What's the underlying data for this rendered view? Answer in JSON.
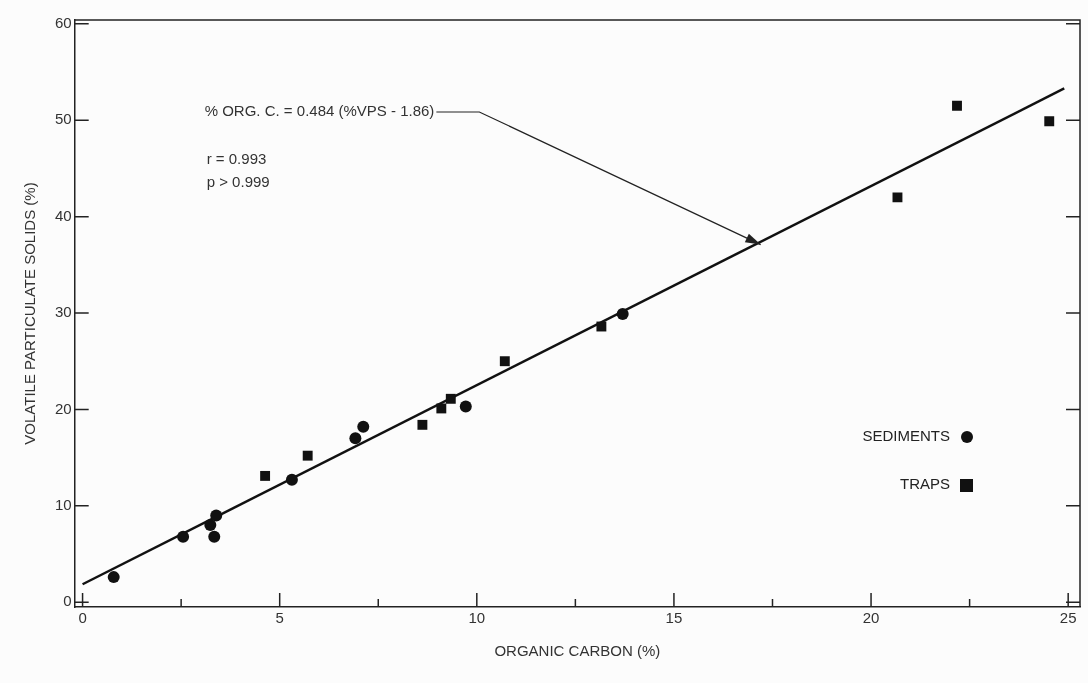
{
  "chart_data": {
    "type": "scatter",
    "xlabel": "ORGANIC CARBON (%)",
    "ylabel": "VOLATILE PARTICULATE SOLIDS (%)",
    "xlim": [
      -0.2,
      25.3
    ],
    "ylim": [
      -0.5,
      60.4
    ],
    "xticks": [
      0,
      {
        "value": 2.5,
        "label": null
      },
      5,
      {
        "value": 7.5,
        "label": null
      },
      10,
      {
        "value": 12.5,
        "label": null
      },
      15,
      {
        "value": 17.5,
        "label": null
      },
      20,
      {
        "value": 22.5,
        "label": null
      },
      25
    ],
    "yticks": [
      0,
      10,
      20,
      30,
      40,
      50,
      60
    ],
    "grid": false,
    "legend": "bottom right",
    "series": [
      {
        "name": "SEDIMENTS",
        "color": "#111111",
        "marker": "circle",
        "x": [
          0.79,
          2.55,
          3.24,
          3.39,
          3.34,
          5.31,
          6.92,
          7.12,
          9.72,
          13.7
        ],
        "values": [
          2.6,
          6.8,
          8.0,
          9.0,
          6.8,
          12.7,
          17.0,
          18.2,
          20.3,
          29.9
        ]
      },
      {
        "name": "TRAPS",
        "color": "#111111",
        "marker": "square",
        "x": [
          4.63,
          5.71,
          8.62,
          9.1,
          9.34,
          10.71,
          13.16,
          20.67,
          22.18,
          24.52
        ],
        "values": [
          13.1,
          15.2,
          18.4,
          20.1,
          21.1,
          25.0,
          28.6,
          42.0,
          51.5,
          49.9
        ]
      },
      {
        "type": "line",
        "color": "#111111",
        "marker": "none",
        "x": [
          0,
          24.9
        ],
        "values": [
          1.86,
          53.3
        ]
      }
    ],
    "annotations": [
      {
        "text": "% ORG. C. = 0.484 (%VPS - 1.86)",
        "x": 17.2,
        "y": 37.1
      },
      "r = 0.993",
      "p > 0.999"
    ]
  }
}
